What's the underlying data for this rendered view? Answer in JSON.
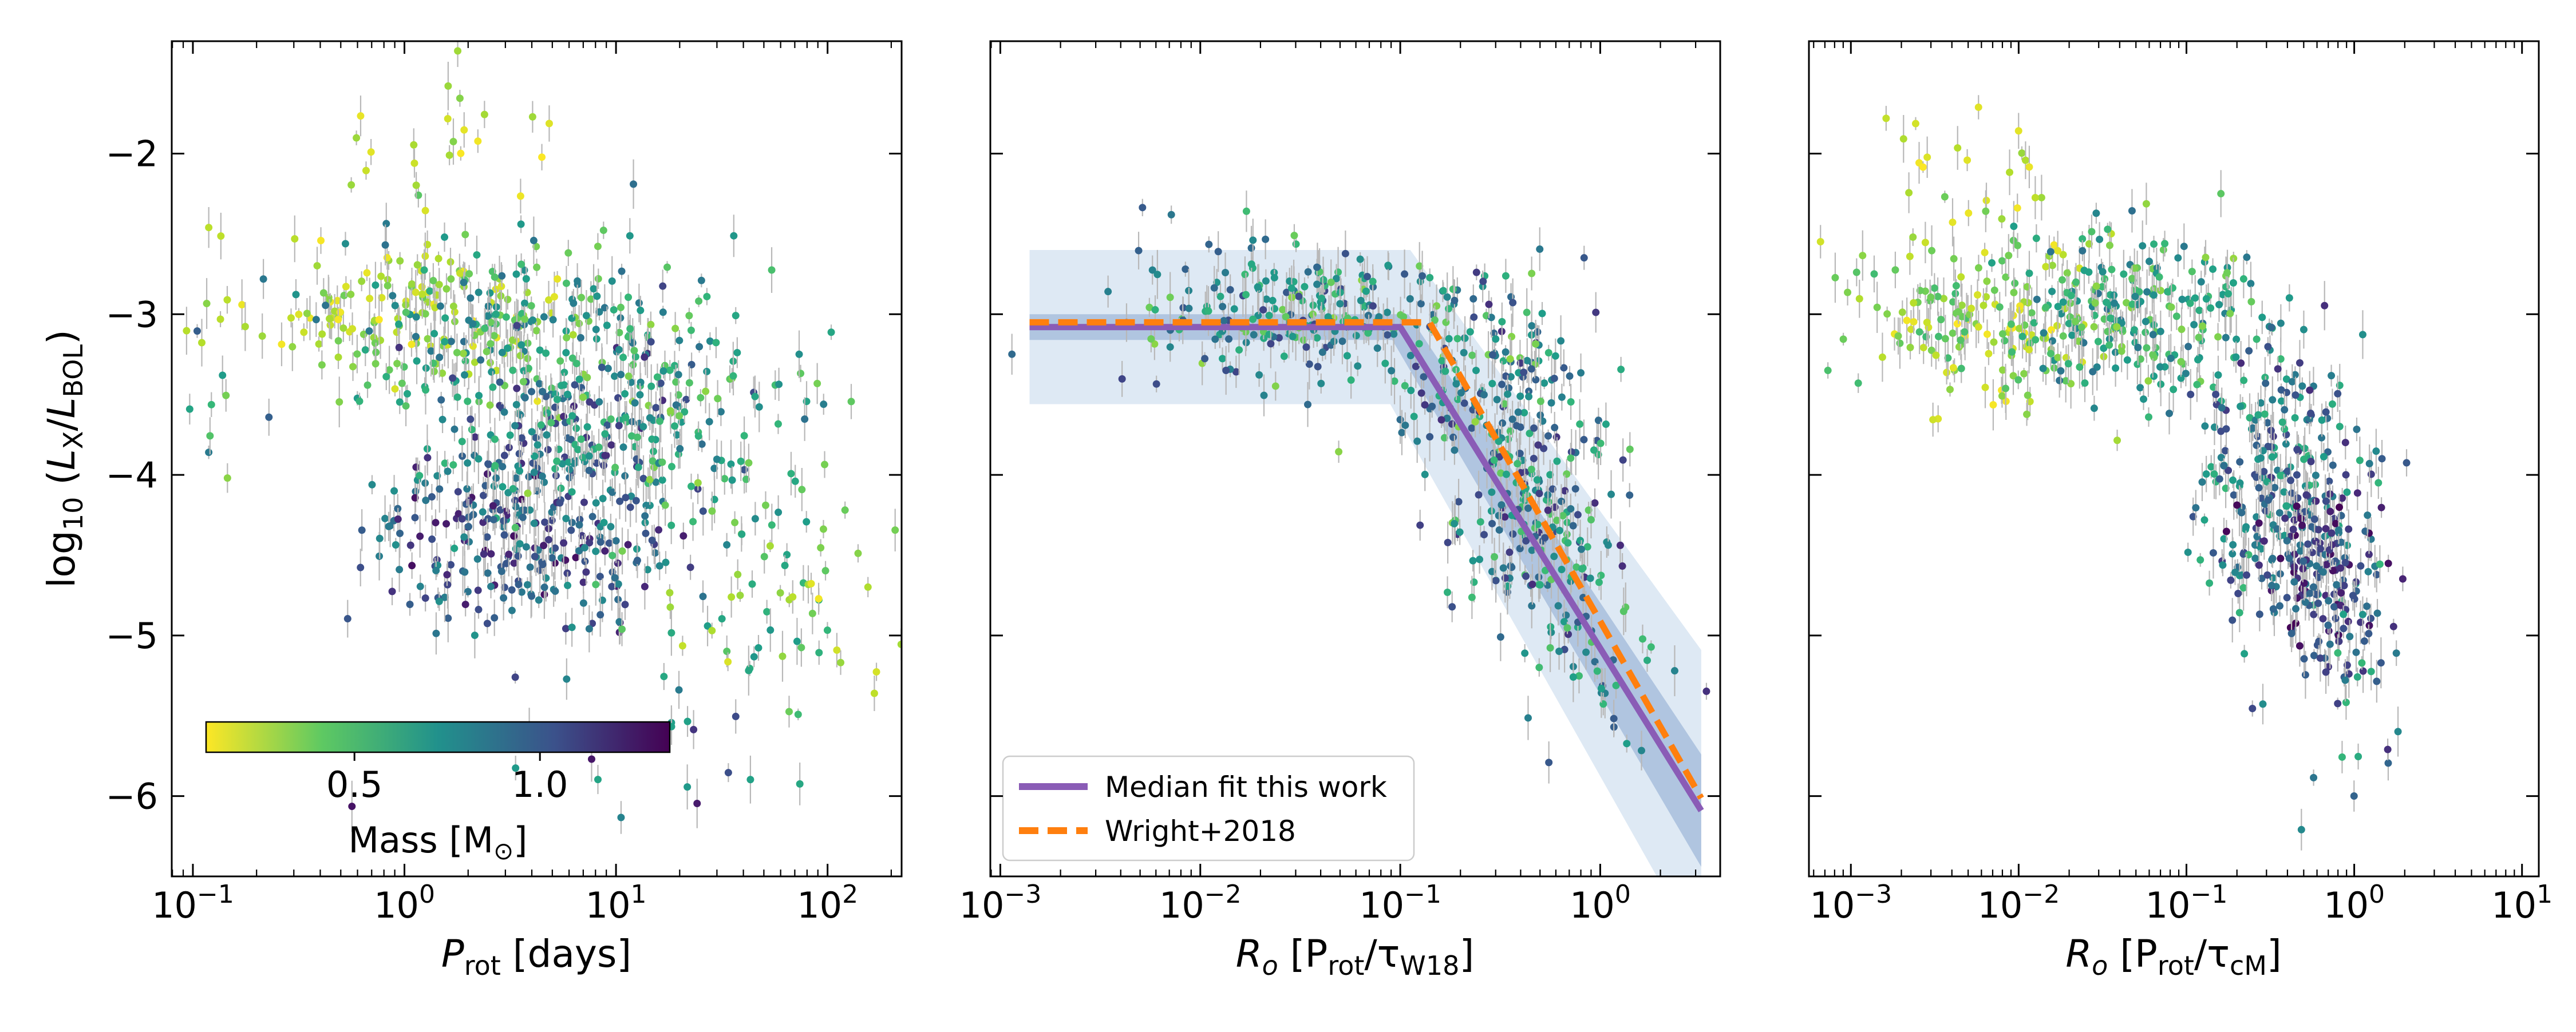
{
  "figure": {
    "colormap": "viridis_r",
    "colors": {
      "fit_median": "#8a5cb6",
      "fit_band": "#a9c6e3",
      "wright2018": "#ff7f0e",
      "errorbar": "#b8b8b8"
    }
  },
  "chart_data": [
    {
      "type": "scatter",
      "panel": "left",
      "xlabel_var": "P",
      "xlabel_sub": "rot",
      "xlabel_unit": "[days]",
      "ylabel_prefix": "log",
      "ylabel_base": "10",
      "ylabel_num": "L",
      "ylabel_num_sub": "X",
      "ylabel_den": "L",
      "ylabel_den_sub": "BOL",
      "xscale": "log",
      "xlim_log10": [
        -1.1,
        2.35
      ],
      "ylim": [
        -6.5,
        -1.3
      ],
      "xtick_labels": [
        {
          "base": "10",
          "exp": "−1",
          "log10": -1
        },
        {
          "base": "10",
          "exp": "0",
          "log10": 0
        },
        {
          "base": "10",
          "exp": "1",
          "log10": 1
        },
        {
          "base": "10",
          "exp": "2",
          "log10": 2
        }
      ],
      "ytick_labels": [
        {
          "label": "−2",
          "value": -2
        },
        {
          "label": "−3",
          "value": -3
        },
        {
          "label": "−4",
          "value": -4
        },
        {
          "label": "−5",
          "value": -5
        },
        {
          "label": "−6",
          "value": -6
        }
      ],
      "colorbar": {
        "label_text": "Mass [M",
        "label_symbol": "⊙",
        "label_close": "]",
        "range": [
          0.1,
          1.35
        ],
        "location": "lower-left",
        "ticks": [
          {
            "label": "0.5",
            "value": 0.5
          },
          {
            "label": "1.0",
            "value": 1.0
          }
        ]
      },
      "clusters": [
        {
          "x_log10": 0.1,
          "y": -3.0,
          "sx": 0.4,
          "sy": 0.25,
          "mass": [
            0.1,
            0.4
          ],
          "count": 160
        },
        {
          "x_log10": 0.55,
          "y": -3.1,
          "sx": 0.45,
          "sy": 0.3,
          "mass": [
            0.3,
            0.9
          ],
          "count": 180
        },
        {
          "x_log10": 0.6,
          "y": -4.4,
          "sx": 0.35,
          "sy": 0.3,
          "mass": [
            0.7,
            1.3
          ],
          "count": 240
        },
        {
          "x_log10": 0.75,
          "y": -3.8,
          "sx": 0.35,
          "sy": 0.35,
          "mass": [
            0.5,
            1.2
          ],
          "count": 200
        },
        {
          "x_log10": 1.2,
          "y": -3.6,
          "sx": 0.35,
          "sy": 0.45,
          "mass": [
            0.3,
            0.9
          ],
          "count": 120
        },
        {
          "x_log10": 1.7,
          "y": -4.7,
          "sx": 0.3,
          "sy": 0.4,
          "mass": [
            0.2,
            0.7
          ],
          "count": 50
        },
        {
          "x_log10": 1.95,
          "y": -4.8,
          "sx": 0.2,
          "sy": 0.35,
          "mass": [
            0.1,
            0.4
          ],
          "count": 14
        },
        {
          "x_log10": 0.25,
          "y": -1.9,
          "sx": 0.3,
          "sy": 0.2,
          "mass": [
            0.1,
            0.35
          ],
          "count": 22
        },
        {
          "x_log10": -0.9,
          "y": -3.7,
          "sx": 0.15,
          "sy": 0.3,
          "mass": [
            0.3,
            1.0
          ],
          "count": 10
        },
        {
          "x_log10": 1.2,
          "y": -5.8,
          "sx": 0.35,
          "sy": 0.3,
          "mass": [
            0.6,
            1.3
          ],
          "count": 18
        }
      ]
    },
    {
      "type": "scatter",
      "panel": "middle",
      "xlabel_var": "R",
      "xlabel_var_sub": "o",
      "xlabel_unit_open": "[P",
      "xlabel_unit_sub1": "rot",
      "xlabel_unit_tau": "/τ",
      "xlabel_unit_sub2": "W18",
      "xlabel_unit_close": "]",
      "xscale": "log",
      "xlim_log10": [
        -3.05,
        0.6
      ],
      "ylim": [
        -6.5,
        -1.3
      ],
      "xtick_labels": [
        {
          "base": "10",
          "exp": "−3",
          "log10": -3
        },
        {
          "base": "10",
          "exp": "−2",
          "log10": -2
        },
        {
          "base": "10",
          "exp": "−1",
          "log10": -1
        },
        {
          "base": "10",
          "exp": "0",
          "log10": 0
        }
      ],
      "fit_median": {
        "saturation_level": -3.08,
        "ro_sat": 0.1,
        "slope": -2.0,
        "ro_range": [
          0.0014,
          3.2
        ]
      },
      "wright2018": {
        "saturation_level": -3.05,
        "ro_sat": 0.14,
        "slope": -2.18,
        "ro_range": [
          0.0014,
          3.2
        ]
      },
      "legend": {
        "location": "lower-left",
        "entries": [
          {
            "label": "Median fit this work",
            "style": "solid"
          },
          {
            "label": "Wright+2018",
            "style": "dashed"
          }
        ]
      },
      "clusters": [
        {
          "x_log10": -1.5,
          "y": -3.0,
          "sx": 0.45,
          "sy": 0.25,
          "mass": [
            0.3,
            1.1
          ],
          "count": 230
        },
        {
          "x_log10": -0.55,
          "y": -3.5,
          "sx": 0.25,
          "sy": 0.35,
          "mass": [
            0.3,
            1.2
          ],
          "count": 170
        },
        {
          "x_log10": -0.3,
          "y": -4.3,
          "sx": 0.2,
          "sy": 0.4,
          "mass": [
            0.4,
            1.2
          ],
          "count": 160
        },
        {
          "x_log10": -0.1,
          "y": -5.2,
          "sx": 0.2,
          "sy": 0.35,
          "mass": [
            0.4,
            1.2
          ],
          "count": 40
        }
      ]
    },
    {
      "type": "scatter",
      "panel": "right",
      "xlabel_var": "R",
      "xlabel_var_sub": "o",
      "xlabel_unit_open": "[P",
      "xlabel_unit_sub1": "rot",
      "xlabel_unit_tau": "/τ",
      "xlabel_unit_sub2": "cM",
      "xlabel_unit_close": "]",
      "xscale": "log",
      "xlim_log10": [
        -3.25,
        1.1
      ],
      "ylim": [
        -6.5,
        -1.3
      ],
      "xtick_labels": [
        {
          "base": "10",
          "exp": "−3",
          "log10": -3
        },
        {
          "base": "10",
          "exp": "−2",
          "log10": -2
        },
        {
          "base": "10",
          "exp": "−1",
          "log10": -1
        },
        {
          "base": "10",
          "exp": "0",
          "log10": 0
        },
        {
          "base": "10",
          "exp": "1",
          "log10": 1
        }
      ],
      "clusters": [
        {
          "x_log10": -2.2,
          "y": -3.0,
          "sx": 0.4,
          "sy": 0.3,
          "mass": [
            0.1,
            0.5
          ],
          "count": 170
        },
        {
          "x_log10": -1.3,
          "y": -3.0,
          "sx": 0.4,
          "sy": 0.25,
          "mass": [
            0.3,
            0.9
          ],
          "count": 230
        },
        {
          "x_log10": -0.45,
          "y": -4.0,
          "sx": 0.25,
          "sy": 0.4,
          "mass": [
            0.5,
            1.2
          ],
          "count": 230
        },
        {
          "x_log10": -0.2,
          "y": -4.6,
          "sx": 0.2,
          "sy": 0.3,
          "mass": [
            0.8,
            1.35
          ],
          "count": 170
        },
        {
          "x_log10": -2.3,
          "y": -1.9,
          "sx": 0.3,
          "sy": 0.25,
          "mass": [
            0.1,
            0.3
          ],
          "count": 18
        },
        {
          "x_log10": 0.0,
          "y": -5.4,
          "sx": 0.2,
          "sy": 0.4,
          "mass": [
            0.5,
            1.2
          ],
          "count": 25
        }
      ]
    }
  ]
}
